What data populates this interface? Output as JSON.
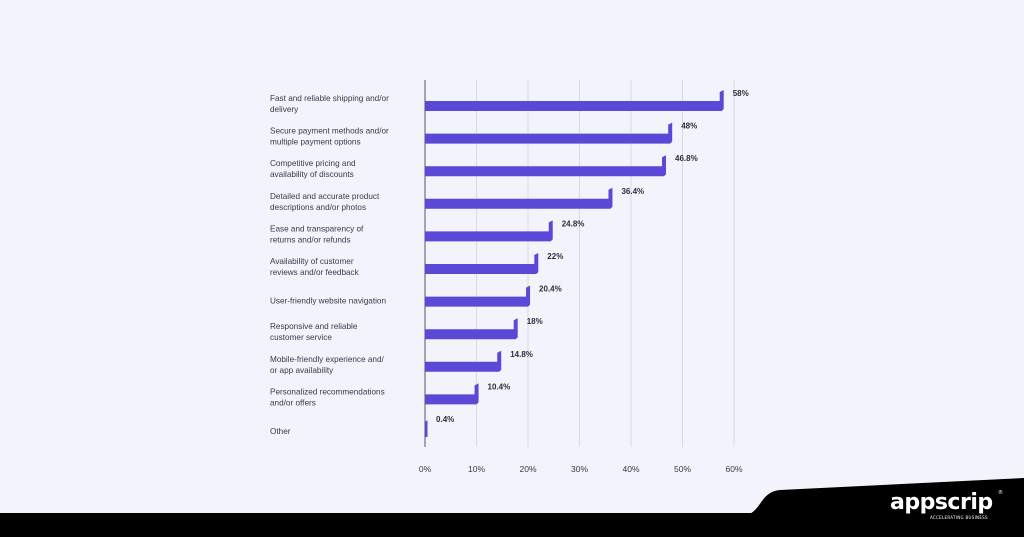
{
  "chart_data": {
    "type": "bar",
    "orientation": "horizontal",
    "title": "",
    "xlabel": "",
    "ylabel": "",
    "xlim": [
      0,
      60
    ],
    "x_ticks": [
      "0%",
      "10%",
      "20%",
      "30%",
      "40%",
      "50%",
      "60%"
    ],
    "grid": true,
    "categories": [
      [
        "Fast and reliable shipping and/or",
        "delivery"
      ],
      [
        "Secure payment methods and/or",
        "multiple payment options"
      ],
      [
        "Competitive pricing and",
        "availability of discounts"
      ],
      [
        "Detailed and accurate product",
        "descriptions and/or photos"
      ],
      [
        "Ease and transparency of",
        "returns and/or refunds"
      ],
      [
        "Availability of customer",
        "reviews and/or feedback"
      ],
      [
        "User-friendly website navigation"
      ],
      [
        "Responsive and reliable",
        "customer service"
      ],
      [
        "Mobile-friendly experience and/",
        "or app availability"
      ],
      [
        "Personalized recommendations",
        "and/or offers"
      ],
      [
        "Other"
      ]
    ],
    "values": [
      58,
      48,
      46.8,
      36.4,
      24.8,
      22,
      20.4,
      18,
      14.8,
      10.4,
      0.4
    ],
    "value_labels": [
      "58%",
      "48%",
      "46.8%",
      "36.4%",
      "24.8%",
      "22%",
      "20.4%",
      "18%",
      "14.8%",
      "10.4%",
      "0.4%"
    ],
    "bar_color": "#5a49d6"
  },
  "brand": {
    "name": "appscrip",
    "tagline": "ACCELERATING BUSINESS",
    "registered_mark": "®"
  },
  "colors": {
    "background": "#f3f3fb",
    "footer": "#000000"
  }
}
